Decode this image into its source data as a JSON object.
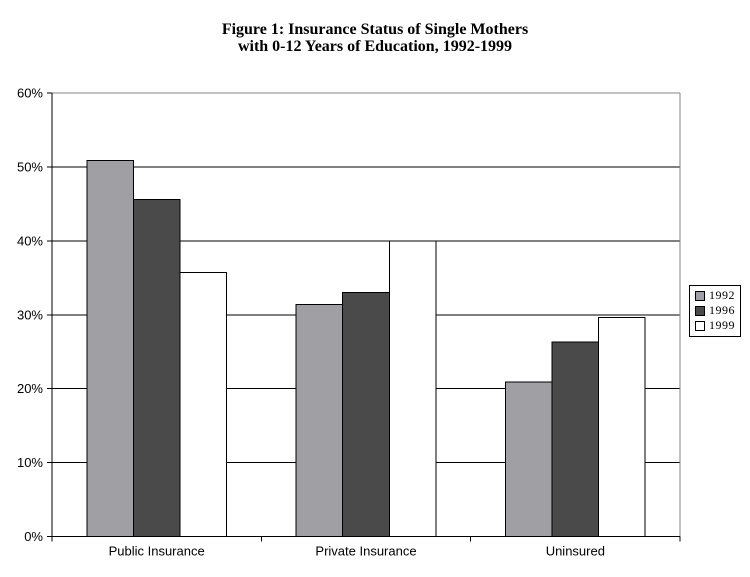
{
  "chart_data": {
    "type": "bar",
    "title": "Figure 1: Insurance Status of Single Mothers with 0-12 Years of Education, 1992-1999",
    "title_lines": [
      "Figure 1: Insurance Status of Single Mothers",
      "with 0-12 Years of Education, 1992-1999"
    ],
    "categories": [
      "Public Insurance",
      "Private Insurance",
      "Uninsured"
    ],
    "series": [
      {
        "name": "1992",
        "fill": "#a0a0a4",
        "values": [
          50.9,
          31.4,
          20.9
        ]
      },
      {
        "name": "1996",
        "fill": "#4a4a4a",
        "values": [
          45.6,
          33.0,
          26.3
        ]
      },
      {
        "name": "1999",
        "fill": "#ffffff",
        "values": [
          35.7,
          40.0,
          29.6
        ]
      }
    ],
    "ylim": [
      0,
      60
    ],
    "ytick_step": 10,
    "ytick_labels": [
      "0%",
      "10%",
      "20%",
      "30%",
      "40%",
      "50%",
      "60%"
    ],
    "xlabel": "",
    "ylabel": "",
    "grid": "horizontal",
    "legend_position": "right",
    "legend_entries": [
      "1992",
      "1996",
      "1999"
    ],
    "colors": {
      "gridline": "#000000",
      "axis": "#000000",
      "plot_border": "#848484",
      "bar_outline": "#000000",
      "background": "#ffffff"
    }
  }
}
